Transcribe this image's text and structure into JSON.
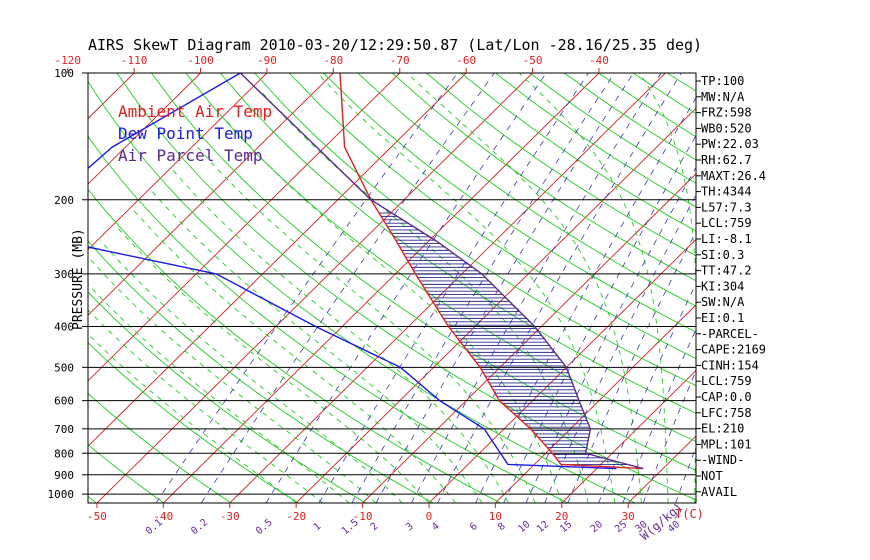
{
  "chart_data": {
    "type": "line",
    "title": "AIRS SkewT Diagram 2010-03-20/12:29:50.87 (Lat/Lon -28.16/25.35 deg)",
    "ylabel": "PRESSURE (MB)",
    "xlabel_bottom": "T(C)",
    "mixing_ratio_label": "W(g/kg)",
    "pressure_levels": [
      100,
      200,
      300,
      400,
      500,
      600,
      700,
      800,
      900,
      1000
    ],
    "top_axis_ticks": [
      -120,
      -110,
      -100,
      -90,
      -80,
      -70,
      -60,
      -50,
      -40
    ],
    "bottom_axis_ticks": [
      -50,
      -40,
      -30,
      -20,
      -10,
      0,
      10,
      20,
      30
    ],
    "mixing_ratio_ticks": [
      "0.1",
      "0.2",
      "0.5",
      "1",
      "1.5",
      "2",
      "3",
      "4",
      "6",
      "8",
      "10",
      "12",
      "15",
      "20",
      "25",
      "30",
      "40"
    ],
    "legend": [
      {
        "label": "Ambient Air Temp",
        "color": "#e02020"
      },
      {
        "label": "Dew Point Temp",
        "color": "#1a1ae6"
      },
      {
        "label": "Air Parcel Temp",
        "color": "#5a2a90"
      }
    ],
    "series": [
      {
        "name": "Ambient Air Temp",
        "color": "#e02020",
        "points": [
          [
            100,
            -79
          ],
          [
            150,
            -67
          ],
          [
            200,
            -55
          ],
          [
            250,
            -45
          ],
          [
            300,
            -37
          ],
          [
            400,
            -24
          ],
          [
            500,
            -13
          ],
          [
            600,
            -5
          ],
          [
            700,
            4
          ],
          [
            800,
            11
          ],
          [
            850,
            14
          ],
          [
            870,
            27
          ]
        ]
      },
      {
        "name": "Dew Point Temp",
        "color": "#1a1ae6",
        "points": [
          [
            100,
            -94
          ],
          [
            150,
            -102
          ],
          [
            200,
            -103
          ],
          [
            250,
            -96
          ],
          [
            300,
            -67
          ],
          [
            400,
            -44
          ],
          [
            500,
            -25
          ],
          [
            600,
            -14
          ],
          [
            700,
            -3
          ],
          [
            850,
            6
          ],
          [
            870,
            23
          ]
        ]
      },
      {
        "name": "Air Parcel Temp",
        "color": "#5a2a90",
        "points": [
          [
            100,
            -94
          ],
          [
            200,
            -55
          ],
          [
            250,
            -39
          ],
          [
            300,
            -27
          ],
          [
            400,
            -11
          ],
          [
            500,
            0
          ],
          [
            600,
            7
          ],
          [
            700,
            13
          ],
          [
            800,
            16
          ],
          [
            870,
            27
          ]
        ]
      }
    ],
    "indices": [
      "TP:100",
      "MW:N/A",
      "FRZ:598",
      "WB0:520",
      "PW:22.03",
      "RH:62.7",
      "MAXT:26.4",
      "TH:4344",
      "L57:7.3",
      "LCL:759",
      "LI:-8.1",
      "SI:0.3",
      "TT:47.2",
      "KI:304",
      "SW:N/A",
      "EI:0.1",
      "-PARCEL-",
      "CAPE:2169",
      "CINH:154",
      "LCL:759",
      "CAP:0.0",
      "LFC:758",
      "EL:210",
      "MPL:101",
      "-WIND-",
      "NOT",
      "AVAIL"
    ],
    "colors": {
      "isotherm": "#d42020",
      "dry_adiabat": "#22cc22",
      "moist_adiabat": "#22cc22",
      "mixing_ratio": "#3a3aaa",
      "isobar": "#000000",
      "cape_hatch": "#2a2a8a"
    },
    "grid": true
  }
}
